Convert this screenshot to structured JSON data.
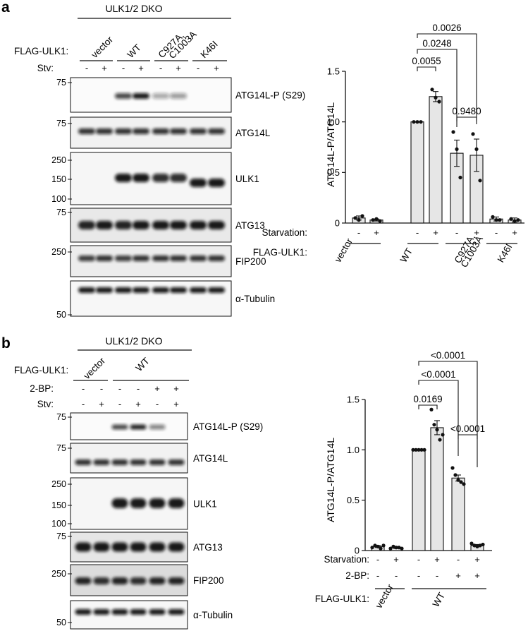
{
  "panel_a": {
    "letter": "a",
    "blot": {
      "header": "ULK1/2 DKO",
      "row_label_flag": "FLAG-ULK1:",
      "row_label_stv": "Stv:",
      "groups": [
        "vector",
        "WT",
        "C927A,",
        "C1003A",
        "K46I"
      ],
      "stv_signs": [
        "-",
        "+",
        "-",
        "+",
        "-",
        "+",
        "-",
        "+"
      ],
      "blots": [
        {
          "label": "ATG14L-P (S29)",
          "markers": [
            "75"
          ]
        },
        {
          "label": "ATG14L",
          "markers": [
            "75"
          ]
        },
        {
          "label": "ULK1",
          "markers": [
            "250",
            "150",
            "100"
          ]
        },
        {
          "label": "ATG13",
          "markers": [
            "75"
          ]
        },
        {
          "label": "FIP200",
          "markers": [
            "250"
          ]
        },
        {
          "label": "α-Tubulin",
          "markers": [
            "50"
          ]
        }
      ]
    },
    "chart_data": {
      "type": "bar",
      "ylabel": "ATG14L-P/ATG14L",
      "ylim": [
        0,
        1.5
      ],
      "yticks": [
        "0",
        "0.5",
        "1.0",
        "1.5"
      ],
      "categories": [
        "vector -",
        "vector +",
        "WT -",
        "WT +",
        "C927A,C1003A -",
        "C927A,C1003A +",
        "K46I -",
        "K46I +"
      ],
      "values": [
        0.05,
        0.03,
        1.0,
        1.25,
        0.69,
        0.67,
        0.04,
        0.03
      ],
      "errors": [
        0.02,
        0.01,
        0.0,
        0.05,
        0.13,
        0.16,
        0.02,
        0.02
      ],
      "points": [
        [
          0.05,
          0.03,
          0.07
        ],
        [
          0.03,
          0.04,
          0.02
        ],
        [
          1.0,
          1.0,
          1.0
        ],
        [
          1.32,
          1.24,
          1.2
        ],
        [
          0.9,
          0.73,
          0.45
        ],
        [
          0.88,
          0.73,
          0.42
        ],
        [
          0.06,
          0.03,
          0.03
        ],
        [
          0.04,
          0.02,
          0.03
        ]
      ],
      "starvation_label": "Starvation:",
      "starvation_signs": [
        "-",
        "+",
        "-",
        "+",
        "-",
        "+",
        "-",
        "+"
      ],
      "flag_label": "FLAG-ULK1:",
      "groups": [
        "vector",
        "WT",
        "C927A,",
        "C1003A",
        "K46I"
      ],
      "pvalues": [
        {
          "text": "0.0055",
          "from": 2,
          "to": 3
        },
        {
          "text": "0.0248",
          "from": 2,
          "to": 4
        },
        {
          "text": "0.0026",
          "from": 2,
          "to": 5
        },
        {
          "text": "0.9480",
          "from": 4,
          "to": 5
        }
      ]
    }
  },
  "panel_b": {
    "letter": "b",
    "blot": {
      "header": "ULK1/2 DKO",
      "row_label_flag": "FLAG-ULK1:",
      "row_label_2bp": "2-BP:",
      "row_label_stv": "Stv:",
      "groups": [
        "vector",
        "WT"
      ],
      "bp_signs": [
        "-",
        "-",
        "-",
        "-",
        "+",
        "+"
      ],
      "stv_signs": [
        "-",
        "+",
        "-",
        "+",
        "-",
        "+"
      ],
      "blots": [
        {
          "label": "ATG14L-P (S29)",
          "markers": [
            "75"
          ]
        },
        {
          "label": "ATG14L",
          "markers": [
            "75"
          ]
        },
        {
          "label": "ULK1",
          "markers": [
            "250",
            "150",
            "100"
          ]
        },
        {
          "label": "ATG13",
          "markers": [
            "75"
          ]
        },
        {
          "label": "FIP200",
          "markers": [
            "250"
          ]
        },
        {
          "label": "α-Tubulin",
          "markers": [
            "50"
          ]
        }
      ]
    },
    "chart_data": {
      "type": "bar",
      "ylabel": "ATG14L-P/ATG14L",
      "ylim": [
        0,
        1.5
      ],
      "yticks": [
        "0",
        "0.5",
        "1.0",
        "1.5"
      ],
      "categories": [
        "vector -/-",
        "vector -/+",
        "WT -/-",
        "WT -/+",
        "WT +/-",
        "WT +/+"
      ],
      "values": [
        0.04,
        0.03,
        1.0,
        1.22,
        0.72,
        0.05
      ],
      "errors": [
        0.01,
        0.01,
        0.0,
        0.07,
        0.03,
        0.01
      ],
      "points": [
        [
          0.03,
          0.05,
          0.04,
          0.02,
          0.05
        ],
        [
          0.02,
          0.04,
          0.03,
          0.03,
          0.02
        ],
        [
          1.0,
          1.0,
          1.0,
          1.0,
          1.0
        ],
        [
          1.4,
          1.25,
          1.2,
          1.1,
          1.15
        ],
        [
          0.82,
          0.75,
          0.7,
          0.68,
          0.66
        ],
        [
          0.07,
          0.05,
          0.04,
          0.05,
          0.06
        ]
      ],
      "starvation_label": "Starvation:",
      "starvation_signs": [
        "-",
        "+",
        "-",
        "+",
        "-",
        "+"
      ],
      "bp_label": "2-BP:",
      "bp_signs": [
        "-",
        "-",
        "-",
        "-",
        "+",
        "+"
      ],
      "flag_label": "FLAG-ULK1:",
      "groups": [
        "vector",
        "WT"
      ],
      "pvalues": [
        {
          "text": "0.0169",
          "from": 2,
          "to": 3
        },
        {
          "text": "<0.0001",
          "from": 2,
          "to": 4
        },
        {
          "text": "<0.0001",
          "from": 2,
          "to": 5
        },
        {
          "text": "<0.0001",
          "from": 4,
          "to": 5
        }
      ]
    }
  }
}
